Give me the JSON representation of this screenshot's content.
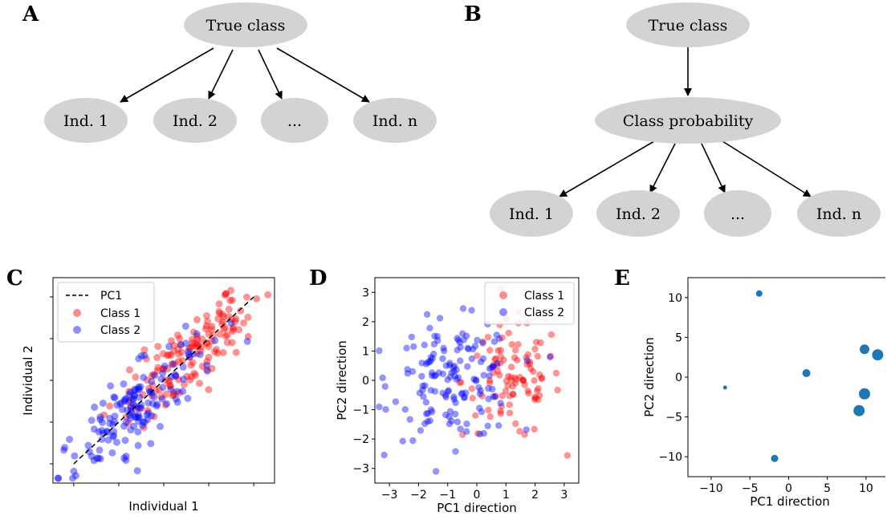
{
  "panels": {
    "A": "A",
    "B": "B",
    "C": "C",
    "D": "D",
    "E": "E"
  },
  "diagram_a": {
    "root": "True class",
    "leaves": [
      "Ind. 1",
      "Ind. 2",
      "...",
      "Ind. n"
    ]
  },
  "diagram_b": {
    "root": "True class",
    "middle": "Class probability",
    "leaves": [
      "Ind. 1",
      "Ind. 2",
      "...",
      "Ind. n"
    ]
  },
  "colors": {
    "node_fill": "#d3d3d3",
    "class1": "#ff0000",
    "class2": "#0000ff",
    "scatter_e": "#1f77b4"
  },
  "chart_data": [
    {
      "id": "C",
      "type": "scatter",
      "xlabel": "Individual 1",
      "ylabel": "Individual 2",
      "xlim": [
        -3.2,
        3.2
      ],
      "ylim": [
        -3.2,
        3.2
      ],
      "tick_labels_shown": false,
      "legend": [
        "PC1",
        "Class 1",
        "Class 2"
      ],
      "legend_placement": "top-left",
      "pc1_line": [
        [
          -2.6,
          -2.6
        ],
        [
          2.6,
          2.6
        ]
      ],
      "series": [
        {
          "name": "Class 1",
          "color": "#ff0000",
          "count": 150,
          "center": [
            0.8,
            0.8
          ]
        },
        {
          "name": "Class 2",
          "color": "#0000ff",
          "count": 150,
          "center": [
            -0.8,
            -0.8
          ]
        }
      ]
    },
    {
      "id": "D",
      "type": "scatter",
      "xlabel": "PC1 direction",
      "ylabel": "PC2 direction",
      "xlim": [
        -3.5,
        3.5
      ],
      "ylim": [
        -3.5,
        3.5
      ],
      "xticks": [
        "−3",
        "−2",
        "−1",
        "0",
        "1",
        "2",
        "3"
      ],
      "yticks": [
        "3",
        "2",
        "1",
        "0",
        "−1",
        "−2",
        "−3"
      ],
      "legend": [
        "Class 1",
        "Class 2"
      ],
      "legend_placement": "top-right",
      "series": [
        {
          "name": "Class 1",
          "color": "#ff0000",
          "count": 100,
          "center": [
            1.2,
            0
          ]
        },
        {
          "name": "Class 2",
          "color": "#0000ff",
          "count": 150,
          "center": [
            -0.8,
            0
          ]
        }
      ]
    },
    {
      "id": "E",
      "type": "scatter",
      "xlabel": "PC1 direction",
      "ylabel": "PC2 direction",
      "xlim": [
        -13,
        12.5
      ],
      "ylim": [
        -12.5,
        12.5
      ],
      "xticks": [
        "−10",
        "−5",
        "0",
        "5",
        "10"
      ],
      "yticks": [
        "10",
        "5",
        "0",
        "−5",
        "−10"
      ],
      "points": [
        {
          "x": -3.8,
          "y": 10.5,
          "s": 4
        },
        {
          "x": 9.8,
          "y": 3.5,
          "s": 6
        },
        {
          "x": 11.5,
          "y": 2.8,
          "s": 7
        },
        {
          "x": 2.3,
          "y": 0.5,
          "s": 5
        },
        {
          "x": -8.2,
          "y": -1.3,
          "s": 2.5
        },
        {
          "x": 9.8,
          "y": -2.1,
          "s": 7
        },
        {
          "x": 9.1,
          "y": -4.2,
          "s": 7
        },
        {
          "x": -1.8,
          "y": -10.2,
          "s": 4.5
        }
      ]
    }
  ]
}
